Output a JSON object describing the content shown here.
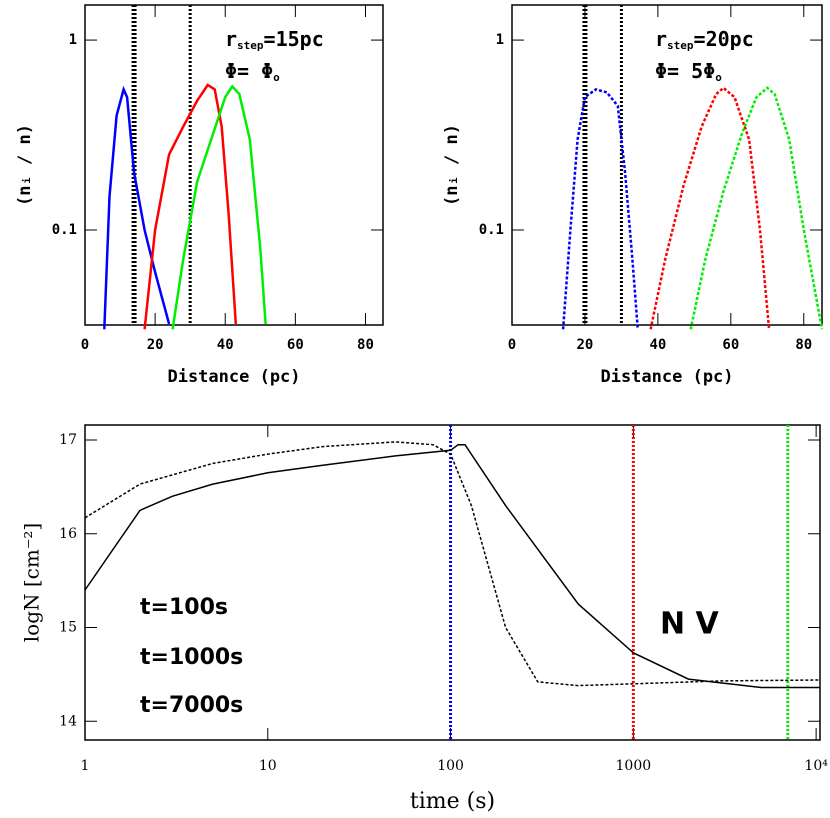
{
  "chart_data": [
    {
      "type": "line",
      "xlabel": "Distance (pc)",
      "ylabel": "(nᵢ / n)",
      "xlim": [
        0,
        85
      ],
      "xticks": [
        0,
        20,
        40,
        60,
        80
      ],
      "ylim": [
        0.0316,
        1.53
      ],
      "ylog": true,
      "yticks": [
        1,
        0.1
      ],
      "annotations": [
        {
          "text": "r",
          "sub": "step",
          "after": "=15pc"
        },
        {
          "text": "Φ=  Φ",
          "sub": "o",
          "after": ""
        }
      ],
      "vlines": [
        {
          "x": 14,
          "color": "#000000"
        },
        {
          "x": 30,
          "color": "#000000"
        }
      ],
      "series": [
        {
          "color": "#0000ff",
          "dash": false,
          "x": [
            5.5,
            7,
            9,
            11,
            12,
            14,
            17,
            20,
            24
          ],
          "values": [
            0.03,
            0.15,
            0.4,
            0.55,
            0.5,
            0.2,
            0.1,
            0.06,
            0.032
          ]
        },
        {
          "color": "#ff0000",
          "dash": false,
          "x": [
            17,
            20,
            24,
            28,
            32,
            35,
            37,
            39,
            41,
            43
          ],
          "values": [
            0.03,
            0.1,
            0.25,
            0.35,
            0.48,
            0.58,
            0.55,
            0.35,
            0.12,
            0.032
          ]
        },
        {
          "color": "#00ee00",
          "dash": false,
          "x": [
            25,
            28,
            32,
            36,
            40,
            42,
            44,
            47,
            50,
            51.5
          ],
          "values": [
            0.03,
            0.07,
            0.18,
            0.3,
            0.5,
            0.57,
            0.52,
            0.3,
            0.08,
            0.032
          ]
        }
      ]
    },
    {
      "type": "line",
      "xlabel": "Distance (pc)",
      "ylabel": "(nᵢ / n)",
      "xlim": [
        0,
        85
      ],
      "xticks": [
        0,
        20,
        40,
        60,
        80
      ],
      "ylim": [
        0.0316,
        1.53
      ],
      "ylog": true,
      "yticks": [
        1,
        0.1
      ],
      "annotations": [
        {
          "text": "r",
          "sub": "step",
          "after": "=20pc"
        },
        {
          "text": "Φ=  5Φ",
          "sub": "o",
          "after": ""
        }
      ],
      "vlines": [
        {
          "x": 20,
          "color": "#000000"
        },
        {
          "x": 30,
          "color": "#000000"
        }
      ],
      "series": [
        {
          "color": "#0000ff",
          "dash": true,
          "x": [
            14,
            16,
            18,
            20,
            23,
            26,
            29,
            31,
            33,
            34.5
          ],
          "values": [
            0.03,
            0.1,
            0.3,
            0.5,
            0.55,
            0.53,
            0.45,
            0.2,
            0.07,
            0.03
          ]
        },
        {
          "color": "#ff0000",
          "dash": true,
          "x": [
            38,
            42,
            47,
            52,
            56,
            58,
            61,
            65,
            68,
            70.5
          ],
          "values": [
            0.03,
            0.07,
            0.17,
            0.35,
            0.52,
            0.56,
            0.5,
            0.3,
            0.1,
            0.03
          ]
        },
        {
          "color": "#00ee00",
          "dash": true,
          "x": [
            49,
            53,
            58,
            63,
            67,
            70,
            72,
            76,
            80,
            85
          ],
          "values": [
            0.03,
            0.07,
            0.16,
            0.32,
            0.5,
            0.56,
            0.52,
            0.3,
            0.1,
            0.03
          ]
        }
      ]
    },
    {
      "type": "line",
      "xlabel": "time (s)",
      "ylabel": "logN [cm⁻²]",
      "xlim": [
        1,
        10500
      ],
      "xlog": true,
      "xticks": [
        1,
        10,
        100,
        1000,
        {
          "value": 10000,
          "label": "10⁴"
        }
      ],
      "ylim": [
        13.8,
        17.16
      ],
      "yticks": [
        14,
        15,
        16,
        17
      ],
      "annotations": [
        {
          "text": "t=100s",
          "color": "#0000ff"
        },
        {
          "text": "t=1000s",
          "color": "#ff0000"
        },
        {
          "text": "t=7000s",
          "color": "#00ee00"
        },
        {
          "text": "N  V",
          "color": "#000000"
        }
      ],
      "vlines": [
        {
          "x": 100,
          "color": "#0000ff"
        },
        {
          "x": 1000,
          "color": "#ff0000"
        },
        {
          "x": 7000,
          "color": "#00ee00"
        }
      ],
      "series": [
        {
          "color": "#000000",
          "dash": false,
          "x": [
            1,
            2,
            3,
            5,
            10,
            20,
            50,
            100,
            110,
            120,
            200,
            500,
            1000,
            2000,
            5000,
            10500
          ],
          "values": [
            15.4,
            16.25,
            16.4,
            16.53,
            16.65,
            16.73,
            16.83,
            16.89,
            16.95,
            16.95,
            16.3,
            15.25,
            14.73,
            14.45,
            14.36,
            14.36
          ]
        },
        {
          "color": "#000000",
          "dash": true,
          "x": [
            1,
            2,
            5,
            10,
            20,
            50,
            80,
            100,
            130,
            200,
            300,
            500,
            1000,
            3000,
            10500
          ],
          "values": [
            16.17,
            16.53,
            16.75,
            16.85,
            16.93,
            16.98,
            16.95,
            16.85,
            16.3,
            15.0,
            14.42,
            14.38,
            14.4,
            14.43,
            14.44
          ]
        }
      ]
    }
  ]
}
